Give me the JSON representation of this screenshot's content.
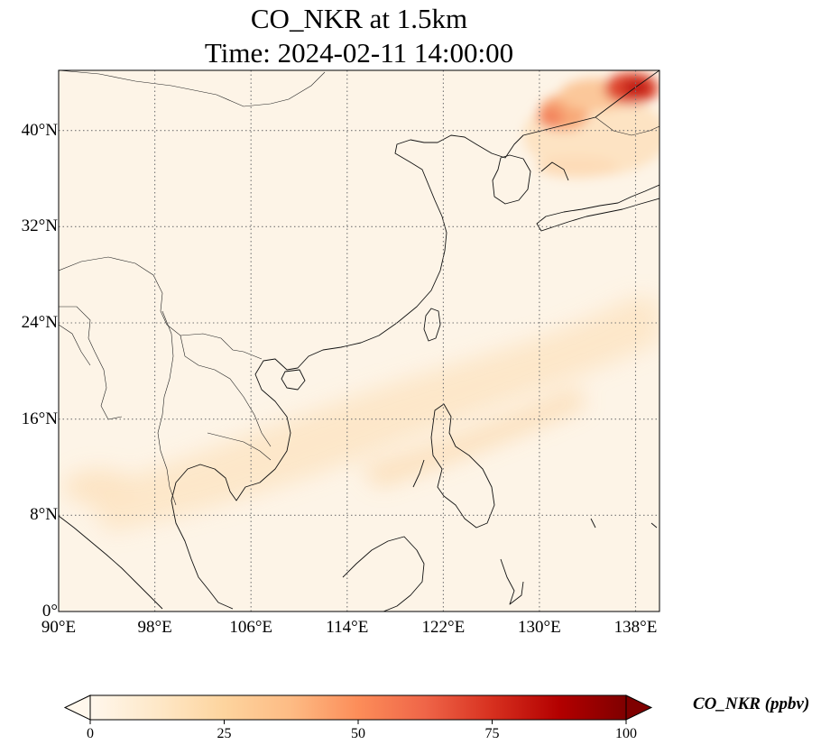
{
  "title": {
    "line1": "CO_NKR at 1.5km",
    "line2": "Time: 2024-02-11 14:00:00"
  },
  "map": {
    "projection": "PlateCarree",
    "extent": {
      "lon": [
        90,
        140
      ],
      "lat": [
        0,
        45
      ]
    },
    "gridlines": "dotted",
    "coastlines": true,
    "borders": true,
    "field": "CO_NKR",
    "max_region": "northeast corner near 138°E, 43°N"
  },
  "x_ticks": [
    {
      "lon": 90,
      "label": "90°E"
    },
    {
      "lon": 98,
      "label": "98°E"
    },
    {
      "lon": 106,
      "label": "106°E"
    },
    {
      "lon": 114,
      "label": "114°E"
    },
    {
      "lon": 122,
      "label": "122°E"
    },
    {
      "lon": 130,
      "label": "130°E"
    },
    {
      "lon": 138,
      "label": "138°E"
    }
  ],
  "y_ticks": [
    {
      "lat": 0,
      "label": "0°"
    },
    {
      "lat": 8,
      "label": "8°N"
    },
    {
      "lat": 16,
      "label": "16°N"
    },
    {
      "lat": 24,
      "label": "24°N"
    },
    {
      "lat": 32,
      "label": "32°N"
    },
    {
      "lat": 40,
      "label": "40°N"
    }
  ],
  "colorbar": {
    "label": "CO_NKR (ppbv)",
    "min": 0,
    "max": 100,
    "extend": "both",
    "colormap": "OrRd",
    "ticks": [
      {
        "value": 0,
        "label": "0"
      },
      {
        "value": 25,
        "label": "25"
      },
      {
        "value": 50,
        "label": "50"
      },
      {
        "value": 75,
        "label": "75"
      },
      {
        "value": 100,
        "label": "100"
      }
    ]
  }
}
